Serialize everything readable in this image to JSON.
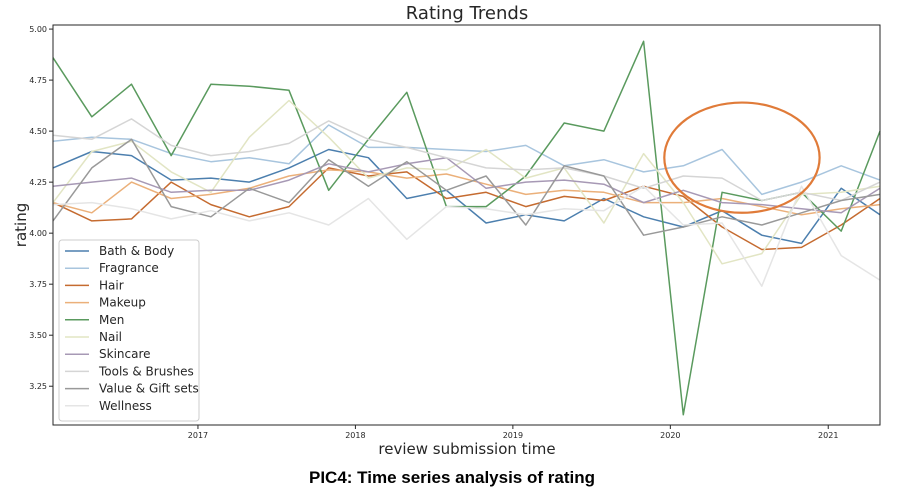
{
  "chart_data": {
    "type": "line",
    "title": "Rating Trends",
    "xlabel": "review submission time",
    "ylabel": "rating",
    "x_axis": "date",
    "xlim": [
      "2016-01-31",
      "2021-05-01"
    ],
    "ylim": [
      3.06,
      5.02
    ],
    "y_ticks": [
      "3.25",
      "3.50",
      "3.75",
      "4.00",
      "4.25",
      "4.50",
      "4.75",
      "5.00"
    ],
    "x_ticks": [
      {
        "label": "2017",
        "date": "2017-01-01"
      },
      {
        "label": "2018",
        "date": "2018-01-01"
      },
      {
        "label": "2019",
        "date": "2019-01-01"
      },
      {
        "label": "2020",
        "date": "2020-01-01"
      },
      {
        "label": "2021",
        "date": "2021-01-01"
      }
    ],
    "grid": false,
    "legend_position": "bottom-left",
    "x": [
      "2016-01-31",
      "2016-04-30",
      "2016-07-31",
      "2016-10-31",
      "2017-01-31",
      "2017-04-30",
      "2017-07-31",
      "2017-10-31",
      "2018-01-31",
      "2018-04-30",
      "2018-07-31",
      "2018-10-31",
      "2019-01-31",
      "2019-04-30",
      "2019-07-31",
      "2019-10-31",
      "2020-01-31",
      "2020-04-30",
      "2020-07-31",
      "2020-10-31",
      "2021-01-31",
      "2021-05-01"
    ],
    "series": [
      {
        "name": "Bath & Body",
        "color": "#4c7fae",
        "values": [
          4.32,
          4.4,
          4.38,
          4.26,
          4.27,
          4.25,
          4.32,
          4.41,
          4.37,
          4.17,
          4.21,
          4.05,
          4.09,
          4.06,
          4.17,
          4.08,
          4.03,
          4.11,
          3.99,
          3.95,
          4.22,
          4.09
        ]
      },
      {
        "name": "Fragrance",
        "color": "#a8c5de",
        "values": [
          4.45,
          4.47,
          4.46,
          4.39,
          4.35,
          4.37,
          4.34,
          4.53,
          4.42,
          4.42,
          4.41,
          4.4,
          4.43,
          4.33,
          4.36,
          4.3,
          4.33,
          4.41,
          4.19,
          4.25,
          4.33,
          4.26
        ]
      },
      {
        "name": "Hair",
        "color": "#c56b30",
        "values": [
          4.15,
          4.06,
          4.07,
          4.25,
          4.14,
          4.08,
          4.13,
          4.32,
          4.28,
          4.3,
          4.17,
          4.2,
          4.13,
          4.18,
          4.16,
          4.23,
          4.18,
          4.03,
          3.92,
          3.93,
          4.04,
          4.17
        ]
      },
      {
        "name": "Makeup",
        "color": "#ebb07a",
        "values": [
          4.15,
          4.1,
          4.25,
          4.17,
          4.19,
          4.22,
          4.28,
          4.31,
          4.3,
          4.27,
          4.29,
          4.24,
          4.19,
          4.21,
          4.2,
          4.15,
          4.15,
          4.17,
          4.13,
          4.09,
          4.12,
          4.14
        ]
      },
      {
        "name": "Men",
        "color": "#5a9a5e",
        "values": [
          4.86,
          4.57,
          4.73,
          4.38,
          4.73,
          4.72,
          4.7,
          4.21,
          4.46,
          4.69,
          4.13,
          4.13,
          4.28,
          4.54,
          4.5,
          4.94,
          3.11,
          4.2,
          4.16,
          4.2,
          4.01,
          4.5
        ]
      },
      {
        "name": "Nail",
        "color": "#e2e5c4",
        "values": [
          4.15,
          4.4,
          4.45,
          4.3,
          4.2,
          4.47,
          4.65,
          4.47,
          4.27,
          4.32,
          4.31,
          4.41,
          4.27,
          4.32,
          4.05,
          4.39,
          4.15,
          3.85,
          3.9,
          4.19,
          4.2,
          4.23
        ]
      },
      {
        "name": "Skincare",
        "color": "#a799b5",
        "values": [
          4.23,
          4.25,
          4.27,
          4.2,
          4.21,
          4.21,
          4.26,
          4.34,
          4.3,
          4.34,
          4.37,
          4.22,
          4.25,
          4.26,
          4.24,
          4.15,
          4.21,
          4.15,
          4.14,
          4.12,
          4.1,
          4.22
        ]
      },
      {
        "name": "Tools & Brushes",
        "color": "#d5d5d5",
        "values": [
          4.48,
          4.46,
          4.56,
          4.43,
          4.38,
          4.4,
          4.44,
          4.55,
          4.46,
          4.42,
          4.37,
          4.32,
          4.31,
          4.32,
          4.28,
          4.22,
          4.28,
          4.27,
          4.16,
          4.2,
          4.16,
          4.25
        ]
      },
      {
        "name": "Value & Gift sets",
        "color": "#999999",
        "values": [
          4.06,
          4.32,
          4.46,
          4.13,
          4.08,
          4.22,
          4.15,
          4.36,
          4.23,
          4.35,
          4.21,
          4.28,
          4.04,
          4.33,
          4.28,
          3.99,
          4.03,
          4.08,
          4.04,
          4.1,
          4.16,
          4.19
        ]
      },
      {
        "name": "Wellness",
        "color": "#e5e5e5",
        "values": [
          4.14,
          4.15,
          4.12,
          4.07,
          4.11,
          4.06,
          4.1,
          4.04,
          4.17,
          3.97,
          4.13,
          4.12,
          4.09,
          4.12,
          4.11,
          4.23,
          4.04,
          4.05,
          3.74,
          4.23,
          3.89,
          3.77
        ]
      }
    ],
    "annotation": {
      "shape": "ellipse",
      "color": "#e07b39",
      "center_date": "2020-06-15",
      "center_value": 4.37,
      "half_span_days": 180,
      "half_span_rating": 0.27
    }
  },
  "caption": "PIC4: Time series analysis of rating"
}
